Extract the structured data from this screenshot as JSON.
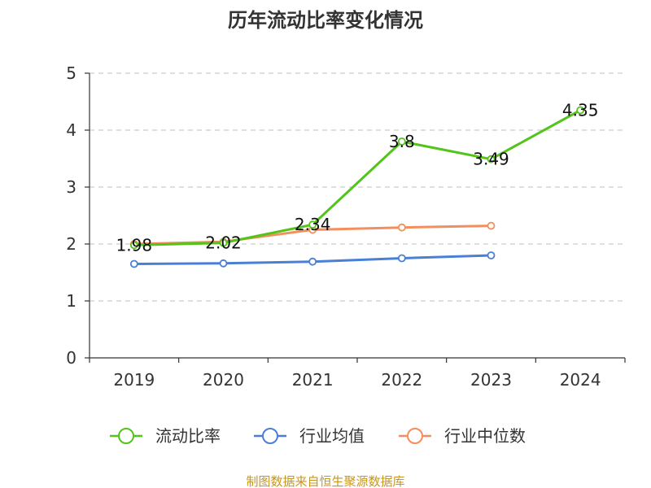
{
  "colors": {
    "current_ratio": "#52c41a",
    "industry_avg": "#4a7fd6",
    "industry_median": "#f28f5c",
    "footer": "#c8961e"
  },
  "chart_data": {
    "type": "line",
    "title": "历年流动比率变化情况",
    "categories": [
      "2019",
      "2020",
      "2021",
      "2022",
      "2023",
      "2024"
    ],
    "ylim": [
      0,
      5
    ],
    "yticks": [
      "0",
      "1",
      "2",
      "3",
      "4",
      "5"
    ],
    "grid": true,
    "legend_position": "bottom",
    "series": [
      {
        "key": "current_ratio",
        "name": "流动比率",
        "values": [
          1.98,
          2.02,
          2.34,
          3.8,
          3.49,
          4.35
        ],
        "labels": [
          "1.98",
          "2.02",
          "2.34",
          "3.8",
          "3.49",
          "4.35"
        ]
      },
      {
        "key": "industry_avg",
        "name": "行业均值",
        "values": [
          1.65,
          1.66,
          1.69,
          1.75,
          1.8,
          null
        ]
      },
      {
        "key": "industry_median",
        "name": "行业中位数",
        "values": [
          2.0,
          2.04,
          2.25,
          2.29,
          2.32,
          null
        ]
      }
    ]
  },
  "footer": "制图数据来自恒生聚源数据库"
}
